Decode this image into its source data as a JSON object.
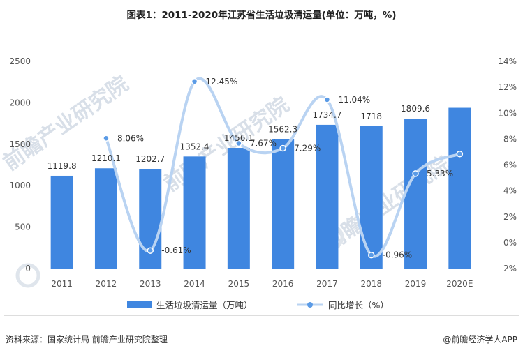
{
  "title": "图表1：2011-2020年江苏省生活垃圾清运量(单位：万吨，%)",
  "source": "资料来源：国家统计局 前瞻产业研究院整理",
  "brand": "@前瞻经济学人APP",
  "watermark": "前瞻产业研究院",
  "chart_data": {
    "type": "bar+line",
    "categories": [
      "2011",
      "2012",
      "2013",
      "2014",
      "2015",
      "2016",
      "2017",
      "2018",
      "2019",
      "2020E"
    ],
    "series": [
      {
        "name": "生活垃圾清运量（万吨）",
        "type": "bar",
        "axis": "left",
        "color": "#3f86e0",
        "values": [
          1119.8,
          1210.1,
          1202.7,
          1352.4,
          1456.1,
          1562.3,
          1734.7,
          1718,
          1809.6,
          1940
        ],
        "labels": [
          "1119.8",
          "1210.1",
          "1202.7",
          "1352.4",
          "1456.1",
          "1562.3",
          "1734.7",
          "1718",
          "1809.6",
          ""
        ]
      },
      {
        "name": "同比增长（%）",
        "type": "line",
        "smooth": true,
        "axis": "right",
        "color": "#b9d3f2",
        "marker_color": "#5b9be6",
        "values": [
          null,
          8.06,
          -0.61,
          12.45,
          7.67,
          7.29,
          11.04,
          -0.96,
          5.33,
          6.85
        ],
        "labels": [
          "",
          "8.06%",
          "-0.61%",
          "12.45%",
          "7.67%",
          "7.29%",
          "11.04%",
          "-0.96%",
          "5.33%",
          ""
        ]
      }
    ],
    "y_left": {
      "min": 0,
      "max": 2500,
      "ticks": [
        "0",
        "500",
        "1000",
        "1500",
        "2000",
        "2500"
      ]
    },
    "y_right": {
      "min": -2,
      "max": 14,
      "ticks": [
        "-2%",
        "0%",
        "2%",
        "4%",
        "6%",
        "8%",
        "10%",
        "12%",
        "14%"
      ]
    },
    "grid": false,
    "legend_position": "bottom"
  }
}
